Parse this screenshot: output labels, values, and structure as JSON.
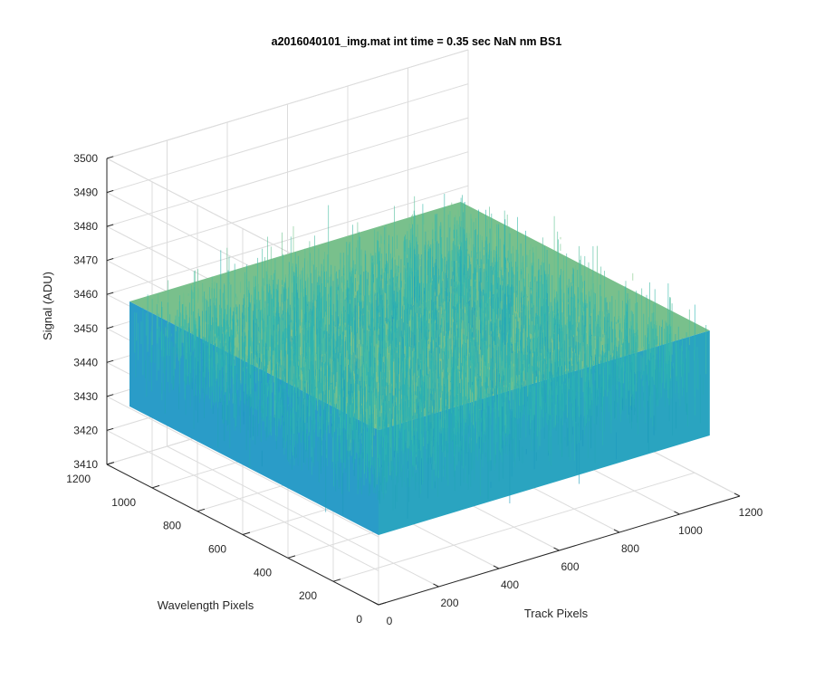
{
  "chart_data": {
    "type": "surface",
    "title": "a2016040101_img.mat int time = 0.35 sec  NaN nm BS1",
    "xlabel": "Track Pixels",
    "ylabel": "Wavelength Pixels",
    "zlabel": "Signal (ADU)",
    "xlim": [
      0,
      1200
    ],
    "ylim": [
      0,
      1200
    ],
    "zlim": [
      3410,
      3500
    ],
    "x_ticks": [
      "0",
      "200",
      "400",
      "600",
      "800",
      "1000",
      "1200"
    ],
    "y_ticks": [
      "0",
      "200",
      "400",
      "600",
      "800",
      "1000",
      "1200"
    ],
    "z_ticks": [
      "3410",
      "3420",
      "3430",
      "3440",
      "3450",
      "3460",
      "3470",
      "3480",
      "3490",
      "3500"
    ],
    "x_tick_values": [
      0,
      200,
      400,
      600,
      800,
      1000,
      1200
    ],
    "y_tick_values": [
      0,
      200,
      400,
      600,
      800,
      1000,
      1200
    ],
    "z_tick_values": [
      3410,
      3420,
      3430,
      3440,
      3450,
      3460,
      3470,
      3480,
      3490,
      3500
    ],
    "data_extent": {
      "x": [
        0,
        1100
      ],
      "y": [
        0,
        1100
      ]
    },
    "signal_mean": 3450,
    "signal_range": [
      3420,
      3485
    ],
    "grid": true,
    "colormap": "parula",
    "colors": {
      "low": "#0c7ec8",
      "mid": "#2fb7b0",
      "high": "#e6dc4a"
    }
  }
}
